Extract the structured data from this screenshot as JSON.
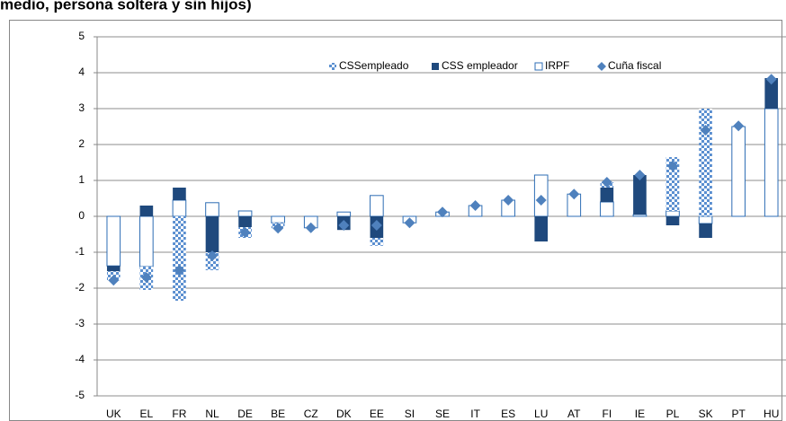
{
  "chart_data": {
    "type": "bar",
    "stacked": true,
    "title": "medio, persona soltera y sin hijos)",
    "categories": [
      "UK",
      "EL",
      "FR",
      "NL",
      "DE",
      "BE",
      "CZ",
      "DK",
      "EE",
      "SI",
      "SE",
      "IT",
      "ES",
      "LU",
      "AT",
      "FI",
      "IE",
      "PL",
      "SK",
      "PT",
      "HU"
    ],
    "series": [
      {
        "name": "CSSempleado",
        "type": "bar",
        "fill": "checker",
        "color": "#5b8fd0",
        "values": [
          -0.25,
          -0.65,
          -2.35,
          -0.5,
          -0.3,
          -0.15,
          0,
          0,
          -0.22,
          0,
          0,
          0,
          0,
          0,
          0,
          0.15,
          0,
          1.5,
          3.0,
          0,
          0
        ]
      },
      {
        "name": "CSS empleador",
        "type": "bar",
        "color": "#1f497d",
        "values": [
          -0.15,
          0.3,
          0.35,
          -1.0,
          -0.3,
          0,
          0,
          -0.38,
          -0.6,
          0,
          0,
          0,
          0,
          -0.7,
          0,
          0.4,
          1.1,
          -0.25,
          -0.4,
          0,
          0.85
        ]
      },
      {
        "name": "IRPF",
        "type": "bar",
        "color": "#ffffff",
        "edgecolor": "#2e6db4",
        "values": [
          -1.38,
          -1.4,
          0.45,
          0.38,
          0.15,
          -0.18,
          -0.32,
          0.12,
          0.58,
          -0.18,
          0.12,
          0.3,
          0.45,
          1.15,
          0.62,
          0.4,
          0.05,
          0.15,
          -0.2,
          2.5,
          3.0
        ]
      },
      {
        "name": "Cuña fiscal",
        "type": "scatter",
        "marker": "diamond",
        "color": "#4f81bd",
        "values": [
          -1.78,
          -1.7,
          -1.5,
          -1.1,
          -0.45,
          -0.33,
          -0.32,
          -0.25,
          -0.25,
          -0.18,
          0.12,
          0.3,
          0.45,
          0.45,
          0.62,
          0.95,
          1.15,
          1.4,
          2.4,
          2.52,
          3.82
        ]
      }
    ],
    "ylim": [
      -5,
      5
    ],
    "yticks": [
      5,
      4,
      3,
      2,
      1,
      0,
      -1,
      -2,
      -3,
      -4,
      -5
    ],
    "grid": true
  }
}
